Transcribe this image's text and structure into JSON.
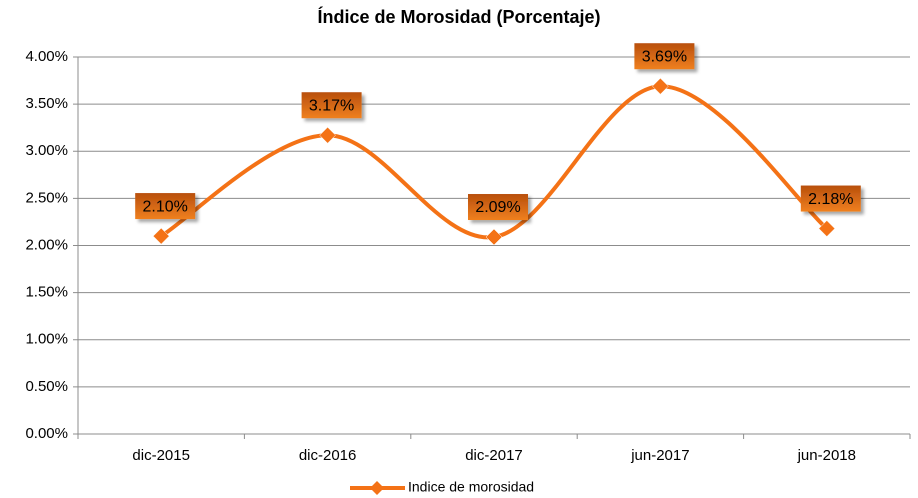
{
  "chart_data": {
    "type": "line",
    "title": "Índice de Morosidad (Porcentaje)",
    "categories": [
      "dic-2015",
      "dic-2016",
      "dic-2017",
      "jun-2017",
      "jun-2018"
    ],
    "series": [
      {
        "name": "Indice de morosidad",
        "color": "#f47216",
        "values": [
          2.1,
          3.17,
          2.09,
          3.69,
          2.18
        ],
        "value_labels": [
          "2.10%",
          "3.17%",
          "2.09%",
          "3.69%",
          "2.18%"
        ]
      }
    ],
    "ylim": [
      0,
      4
    ],
    "yticks": [
      {
        "value": 0,
        "label": "0.00%"
      },
      {
        "value": 0.5,
        "label": "0.50%"
      },
      {
        "value": 1,
        "label": "1.00%"
      },
      {
        "value": 1.5,
        "label": "1.50%"
      },
      {
        "value": 2,
        "label": "2.00%"
      },
      {
        "value": 2.5,
        "label": "2.50%"
      },
      {
        "value": 3,
        "label": "3.00%"
      },
      {
        "value": 3.5,
        "label": "3.50%"
      },
      {
        "value": 4,
        "label": "4.00%"
      }
    ],
    "grid": true,
    "smooth": true,
    "legend": "bottom"
  }
}
